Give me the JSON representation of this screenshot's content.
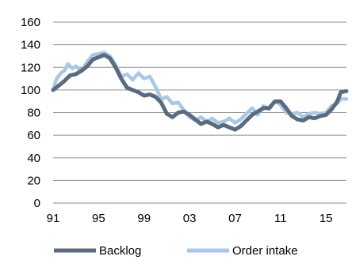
{
  "chart_data": {
    "type": "line",
    "title": "",
    "xlabel": "",
    "ylabel": "",
    "ylim": [
      0,
      160
    ],
    "xlim": [
      1991,
      2016.8
    ],
    "x_ticks": [
      1991,
      1995,
      1999,
      2003,
      2007,
      2011,
      2015
    ],
    "x_tick_labels": [
      "91",
      "95",
      "99",
      "03",
      "07",
      "11",
      "15"
    ],
    "y_ticks": [
      0,
      20,
      40,
      60,
      80,
      100,
      120,
      140,
      160
    ],
    "y_tick_labels": [
      "0",
      "20",
      "40",
      "60",
      "80",
      "100",
      "120",
      "140",
      "160"
    ],
    "grid": "horizontal",
    "legend_position": "bottom",
    "series": [
      {
        "name": "Backlog",
        "color": "#5a6b7f",
        "points": [
          [
            1991.0,
            100
          ],
          [
            1991.5,
            104
          ],
          [
            1992.0,
            108
          ],
          [
            1992.5,
            113
          ],
          [
            1993.0,
            114
          ],
          [
            1993.5,
            117
          ],
          [
            1994.0,
            121
          ],
          [
            1994.5,
            127
          ],
          [
            1995.0,
            129
          ],
          [
            1995.5,
            131
          ],
          [
            1996.0,
            128
          ],
          [
            1996.5,
            120
          ],
          [
            1997.0,
            110
          ],
          [
            1997.5,
            102
          ],
          [
            1998.0,
            100
          ],
          [
            1998.5,
            98
          ],
          [
            1999.0,
            95
          ],
          [
            1999.5,
            96
          ],
          [
            2000.0,
            94
          ],
          [
            2000.5,
            89
          ],
          [
            2001.0,
            79
          ],
          [
            2001.5,
            76
          ],
          [
            2002.0,
            80
          ],
          [
            2002.5,
            81
          ],
          [
            2003.0,
            78
          ],
          [
            2003.5,
            74
          ],
          [
            2004.0,
            70
          ],
          [
            2004.5,
            72
          ],
          [
            2005.0,
            70
          ],
          [
            2005.5,
            67
          ],
          [
            2006.0,
            69
          ],
          [
            2006.5,
            67
          ],
          [
            2007.0,
            65
          ],
          [
            2007.5,
            68
          ],
          [
            2008.0,
            73
          ],
          [
            2008.5,
            78
          ],
          [
            2009.0,
            81
          ],
          [
            2009.5,
            84
          ],
          [
            2010.0,
            84
          ],
          [
            2010.5,
            90
          ],
          [
            2011.0,
            90
          ],
          [
            2011.5,
            84
          ],
          [
            2012.0,
            77
          ],
          [
            2012.5,
            74
          ],
          [
            2013.0,
            73
          ],
          [
            2013.5,
            76
          ],
          [
            2014.0,
            75
          ],
          [
            2014.5,
            77
          ],
          [
            2015.0,
            78
          ],
          [
            2015.5,
            83
          ],
          [
            2016.0,
            90
          ],
          [
            2016.3,
            98
          ],
          [
            2016.8,
            99
          ]
        ]
      },
      {
        "name": "Order intake",
        "color": "#a9c8e8",
        "points": [
          [
            1991.0,
            100
          ],
          [
            1991.3,
            110
          ],
          [
            1991.7,
            115
          ],
          [
            1992.0,
            117
          ],
          [
            1992.3,
            123
          ],
          [
            1992.7,
            119
          ],
          [
            1993.0,
            121
          ],
          [
            1993.5,
            117
          ],
          [
            1994.0,
            125
          ],
          [
            1994.5,
            131
          ],
          [
            1995.0,
            132
          ],
          [
            1995.5,
            133
          ],
          [
            1996.0,
            130
          ],
          [
            1996.5,
            122
          ],
          [
            1997.0,
            112
          ],
          [
            1997.5,
            114
          ],
          [
            1998.0,
            109
          ],
          [
            1998.5,
            115
          ],
          [
            1999.0,
            110
          ],
          [
            1999.5,
            112
          ],
          [
            2000.0,
            103
          ],
          [
            2000.5,
            92
          ],
          [
            2001.0,
            94
          ],
          [
            2001.5,
            88
          ],
          [
            2002.0,
            89
          ],
          [
            2002.5,
            82
          ],
          [
            2003.0,
            76
          ],
          [
            2003.5,
            73
          ],
          [
            2004.0,
            76
          ],
          [
            2004.5,
            72
          ],
          [
            2005.0,
            75
          ],
          [
            2005.5,
            71
          ],
          [
            2006.0,
            72
          ],
          [
            2006.5,
            75
          ],
          [
            2007.0,
            71
          ],
          [
            2007.5,
            74
          ],
          [
            2008.0,
            79
          ],
          [
            2008.5,
            84
          ],
          [
            2009.0,
            78
          ],
          [
            2009.5,
            86
          ],
          [
            2010.0,
            83
          ],
          [
            2010.5,
            90
          ],
          [
            2011.0,
            87
          ],
          [
            2011.5,
            80
          ],
          [
            2012.0,
            79
          ],
          [
            2012.5,
            80
          ],
          [
            2013.0,
            76
          ],
          [
            2013.5,
            79
          ],
          [
            2014.0,
            80
          ],
          [
            2014.5,
            79
          ],
          [
            2015.0,
            80
          ],
          [
            2015.5,
            86
          ],
          [
            2016.0,
            88
          ],
          [
            2016.3,
            92
          ],
          [
            2016.8,
            92
          ]
        ]
      }
    ]
  }
}
